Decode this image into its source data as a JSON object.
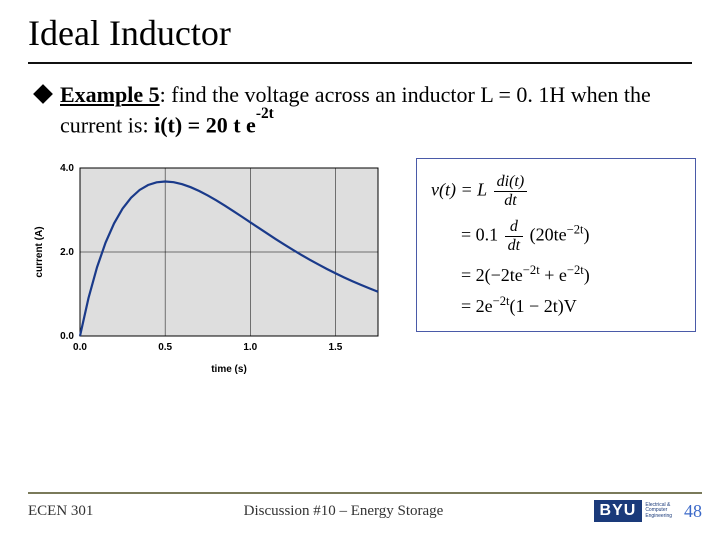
{
  "title": "Ideal Inductor",
  "bullet": {
    "label": "Example 5",
    "prefix": ": find the voltage across an inductor L = 0. 1H when the current is: ",
    "formula_lead": "i(t) = 20 t e",
    "formula_exp": "-2t"
  },
  "chart": {
    "background_color": "#ffffff",
    "plot_bg": "#dedede",
    "border_color": "#000000",
    "grid_color": "#000000",
    "line_color": "#1a3a8a",
    "line_width": 2.2,
    "axis_font_size": 10,
    "label_font_size": 10,
    "xlabel": "time (s)",
    "ylabel": "current (A)",
    "xlim": [
      0.0,
      1.75
    ],
    "ylim": [
      0.0,
      4.0
    ],
    "xticks": [
      0.0,
      0.5,
      1.0,
      1.5
    ],
    "yticks": [
      0.0,
      2.0,
      4.0
    ],
    "xtick_labels": [
      "0.0",
      "0.5",
      "1.0",
      "1.5"
    ],
    "ytick_labels": [
      "0.0",
      "2.0",
      "4.0"
    ],
    "series": {
      "x": [
        0.0,
        0.05,
        0.1,
        0.15,
        0.2,
        0.25,
        0.3,
        0.35,
        0.4,
        0.45,
        0.5,
        0.55,
        0.6,
        0.65,
        0.7,
        0.75,
        0.8,
        0.85,
        0.9,
        0.95,
        1.0,
        1.05,
        1.1,
        1.15,
        1.2,
        1.25,
        1.3,
        1.35,
        1.4,
        1.45,
        1.5,
        1.55,
        1.6,
        1.65,
        1.7,
        1.75
      ],
      "y": [
        0.0,
        0.905,
        1.637,
        2.222,
        2.681,
        3.033,
        3.293,
        3.477,
        3.595,
        3.659,
        3.679,
        3.662,
        3.614,
        3.543,
        3.452,
        3.347,
        3.23,
        3.105,
        2.975,
        2.842,
        2.707,
        2.572,
        2.438,
        2.306,
        2.177,
        2.052,
        1.931,
        1.815,
        1.703,
        1.596,
        1.494,
        1.397,
        1.304,
        1.216,
        1.133,
        1.054
      ]
    }
  },
  "equations": {
    "line1": {
      "lhs": "v(t) = L",
      "frac_num": "di(t)",
      "frac_den": "dt"
    },
    "line2": {
      "pre": "= 0.1",
      "frac_num": "d",
      "frac_den": "dt",
      "post": "(20te",
      "exp": "−2t",
      "tail": ")"
    },
    "line3": {
      "pre": "= 2(−2te",
      "exp1": "−2t",
      "mid": " + e",
      "exp2": "−2t",
      "tail": ")"
    },
    "line4": {
      "pre": "= 2e",
      "exp": "−2t",
      "tail": "(1 − 2t)V"
    }
  },
  "footer": {
    "left": "ECEN 301",
    "center": "Discussion #10 – Energy Storage",
    "page": "48",
    "logo_text": "BYU",
    "logo_sub1": "Electrical &",
    "logo_sub2": "Computer",
    "logo_sub3": "Engineering"
  }
}
